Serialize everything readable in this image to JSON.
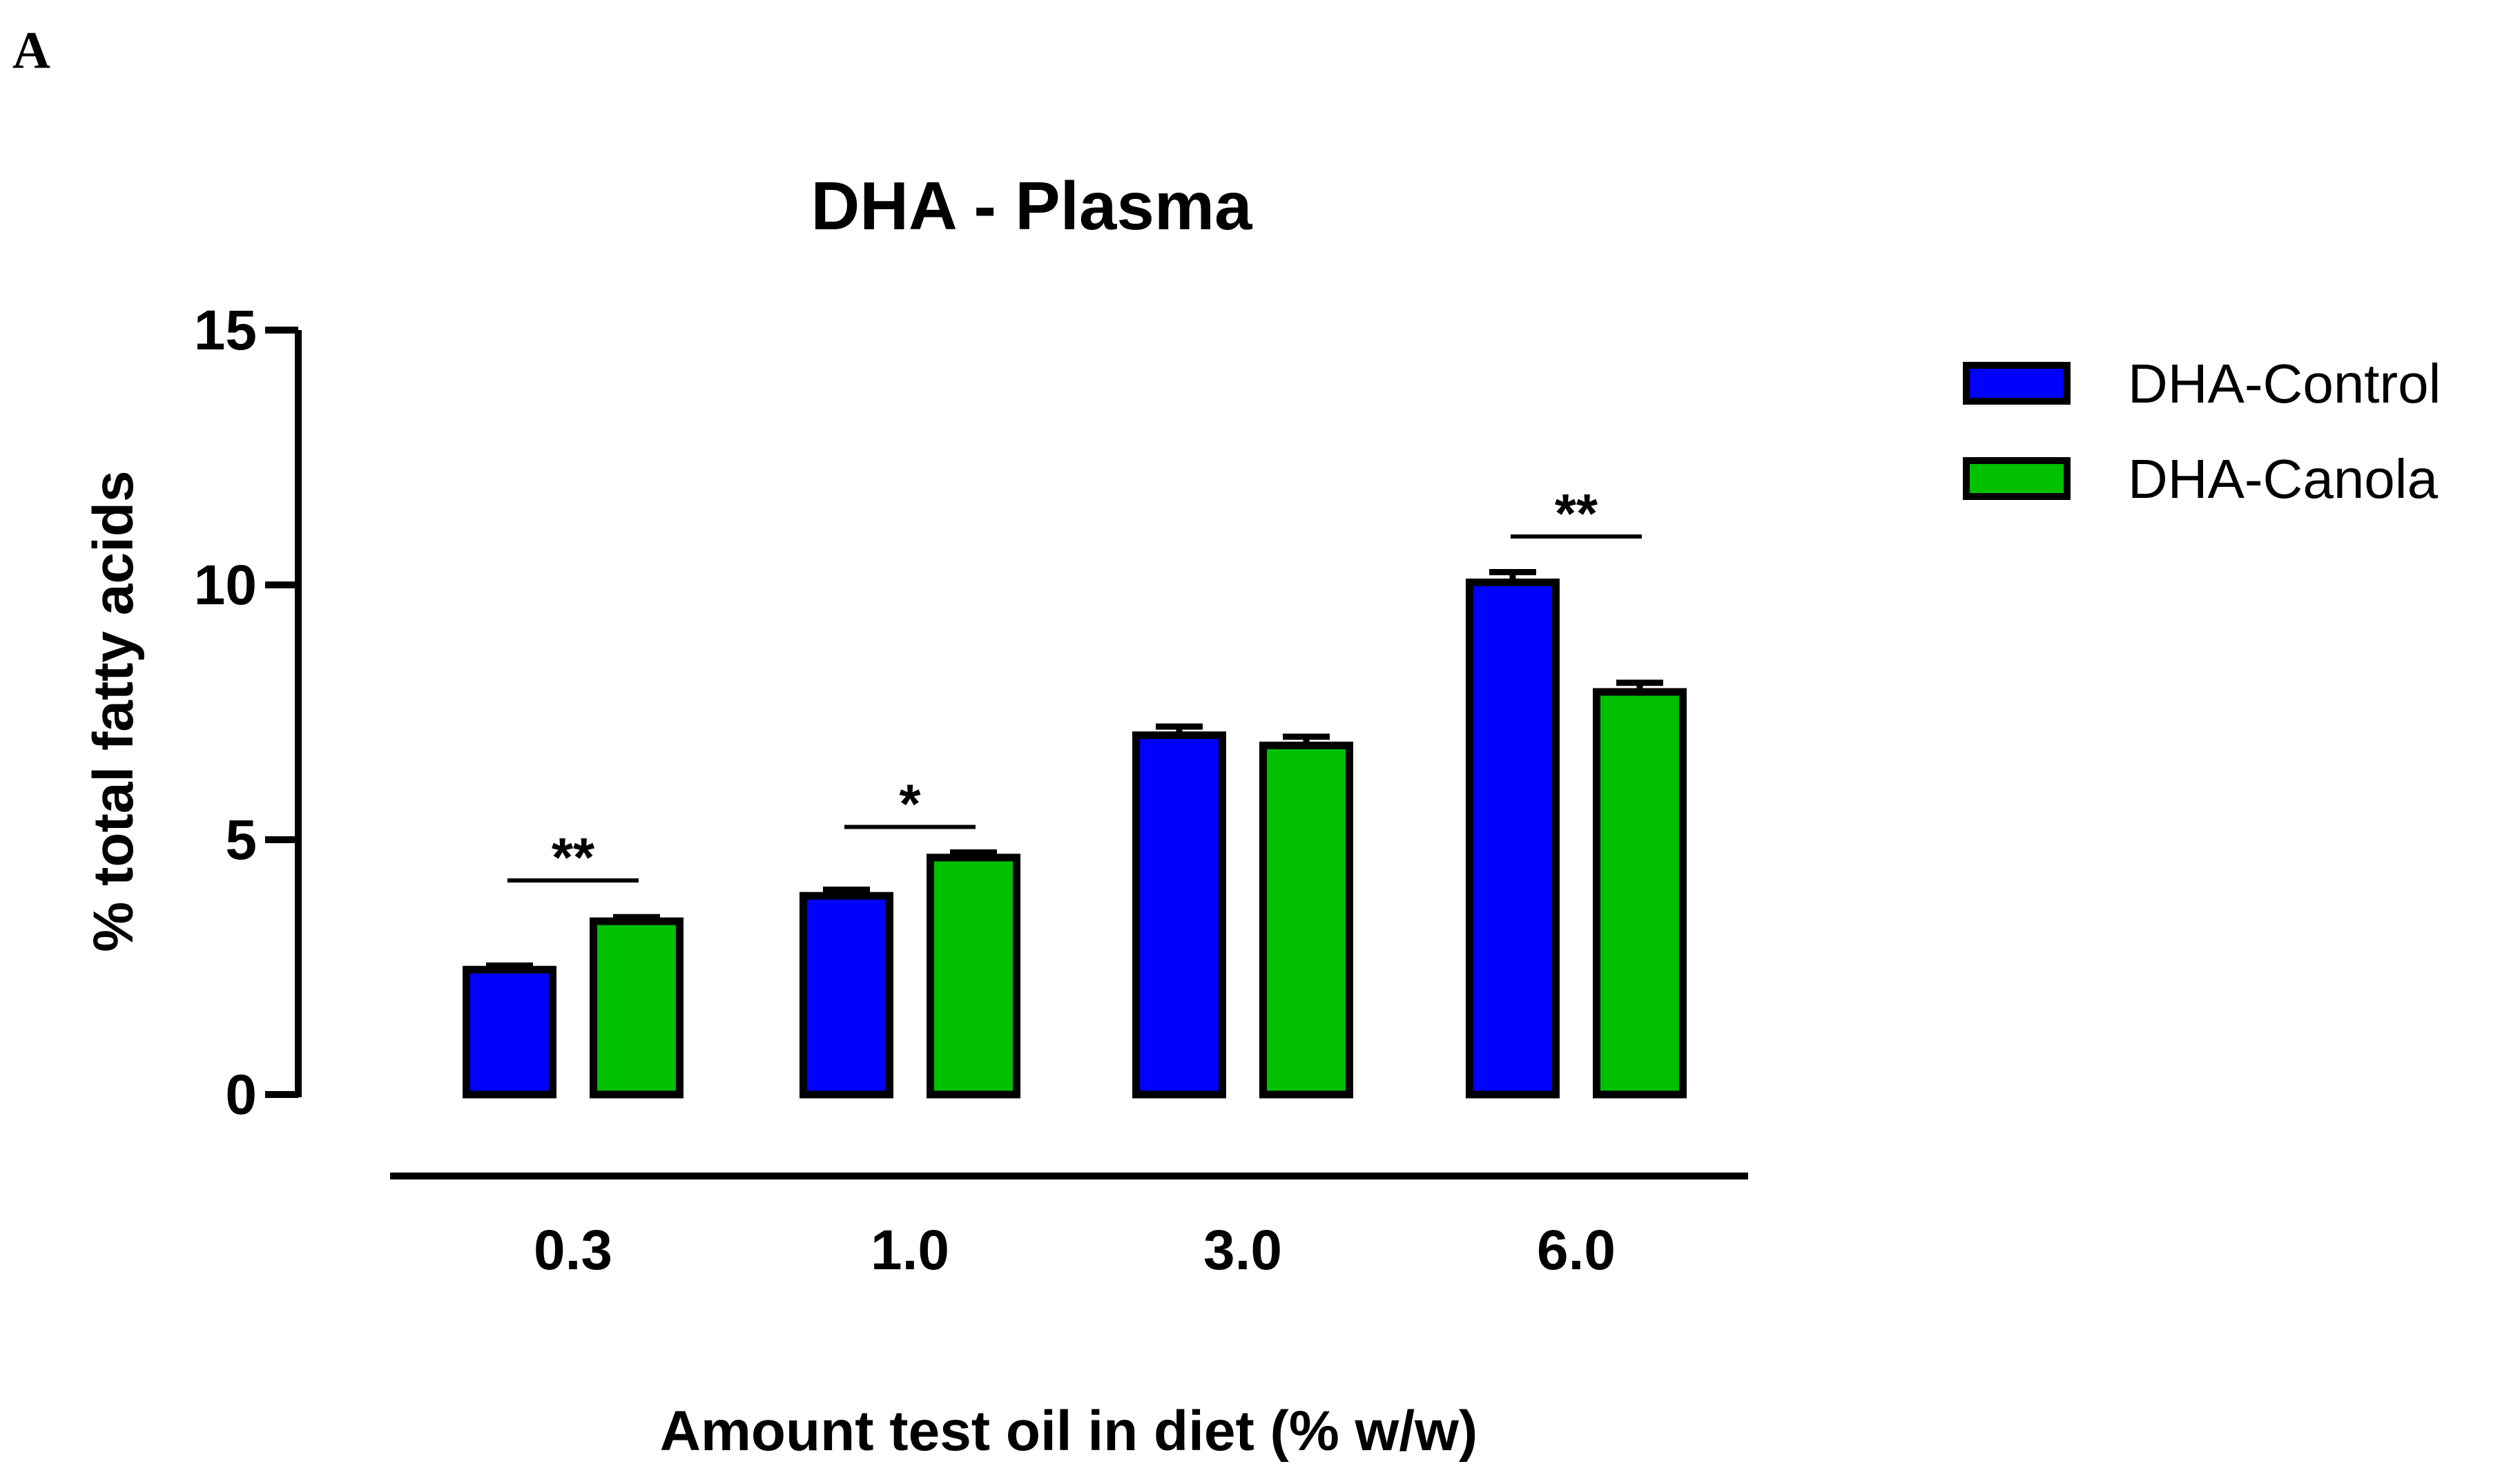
{
  "panel_label": "A",
  "chart_data": {
    "type": "bar",
    "title": "DHA - Plasma",
    "xlabel": "Amount test oil in diet (% w/w)",
    "ylabel": "% total fatty acids",
    "ylim": [
      0,
      15
    ],
    "yticks": [
      0,
      5,
      10,
      15
    ],
    "categories": [
      "0.3",
      "1.0",
      "3.0",
      "6.0"
    ],
    "series": [
      {
        "name": "DHA-Control",
        "color": "#0000FF",
        "values": [
          2.45,
          3.9,
          7.05,
          10.05
        ],
        "errors": [
          0.08,
          0.12,
          0.17,
          0.2
        ]
      },
      {
        "name": "DHA-Canola",
        "color": "#00C000",
        "values": [
          3.4,
          4.65,
          6.85,
          7.9
        ],
        "errors": [
          0.08,
          0.1,
          0.17,
          0.18
        ]
      }
    ],
    "significance": [
      {
        "category": "0.3",
        "label": "**",
        "y": 4.2
      },
      {
        "category": "1.0",
        "label": "*",
        "y": 5.25
      },
      {
        "category": "6.0",
        "label": "**",
        "y": 10.95
      }
    ],
    "legend_position": "top-right"
  }
}
